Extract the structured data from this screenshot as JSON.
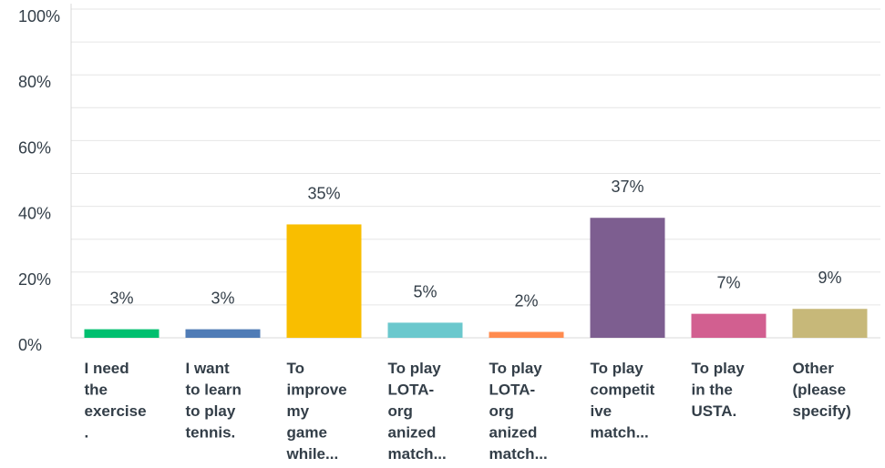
{
  "chart_data": {
    "type": "bar",
    "categories": [
      "I need the exercise.",
      "I want to learn to play tennis.",
      "To improve my game while...",
      "To play LOTA-organized match...",
      "To play LOTA-organized match...",
      "To play competitive match...",
      "To play in the USTA.",
      "Other (please specify)"
    ],
    "category_lines": [
      [
        "I need",
        "the",
        "exercise",
        "."
      ],
      [
        "I want",
        "to learn",
        "to play",
        "tennis."
      ],
      [
        "To",
        "improve",
        "my",
        "game",
        "while..."
      ],
      [
        "To play",
        "LOTA-",
        "org",
        "anized",
        "match..."
      ],
      [
        "To play",
        "LOTA-",
        "org",
        "anized",
        "match..."
      ],
      [
        "To play",
        "competit",
        "ive",
        "match..."
      ],
      [
        "To play",
        "in the",
        "USTA."
      ],
      [
        "Other",
        "(please",
        "specify)"
      ]
    ],
    "values": [
      2.6,
      2.6,
      34.5,
      4.6,
      1.8,
      36.5,
      7.3,
      8.8
    ],
    "value_labels": [
      "3%",
      "3%",
      "35%",
      "5%",
      "2%",
      "37%",
      "7%",
      "9%"
    ],
    "colors": [
      "#00bf6f",
      "#507cb6",
      "#f9be00",
      "#6bc8cd",
      "#ff8b4f",
      "#7d5e90",
      "#d25f90",
      "#c7b879"
    ],
    "y_ticks": [
      "0%",
      "20%",
      "40%",
      "60%",
      "80%",
      "100%"
    ],
    "ylim": [
      0,
      100
    ],
    "grid": true,
    "title": "",
    "xlabel": "",
    "ylabel": ""
  }
}
